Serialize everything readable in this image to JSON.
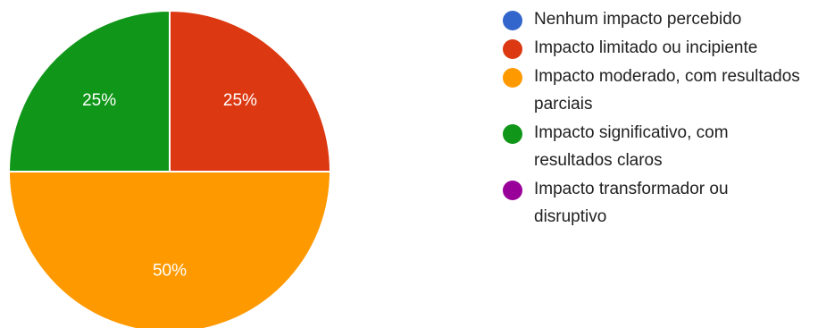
{
  "chart_data": {
    "type": "pie",
    "title": "",
    "legend_position": "right",
    "slices": [
      {
        "label": "Nenhum impacto percebido",
        "value": 0,
        "color": "#3366cc"
      },
      {
        "label": "Impacto limitado ou incipiente",
        "value": 25,
        "value_label": "25%",
        "color": "#dc3912"
      },
      {
        "label": "Impacto moderado, com resultados parciais",
        "value": 50,
        "value_label": "50%",
        "color": "#ff9900"
      },
      {
        "label": "Impacto significativo, com resultados claros",
        "value": 25,
        "value_label": "25%",
        "color": "#109618"
      },
      {
        "label": "Impacto transformador ou disruptivo",
        "value": 0,
        "color": "#990099"
      }
    ]
  }
}
